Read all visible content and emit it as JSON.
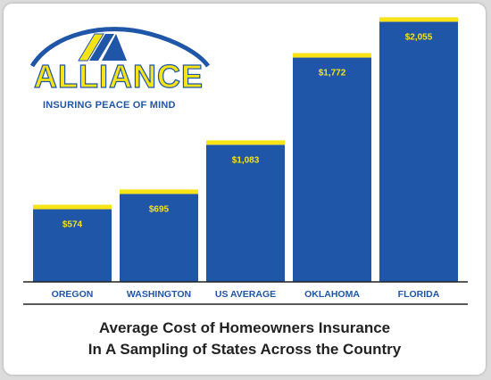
{
  "logo": {
    "name": "ALLIANCE",
    "tagline": "INSURING PEACE OF MIND"
  },
  "colors": {
    "bar": "#1f56a8",
    "bar_cap": "#f7e316",
    "value_label": "#f7e316",
    "category_label": "#1f56a8",
    "axis": "#222222"
  },
  "chart_data": {
    "type": "bar",
    "title": "Average Cost of Homeowners Insurance",
    "subtitle": "In A Sampling of States Across the Country",
    "categories": [
      "OREGON",
      "WASHINGTON",
      "US AVERAGE",
      "OKLAHOMA",
      "FLORIDA"
    ],
    "values": [
      574,
      695,
      1083,
      1772,
      2055
    ],
    "value_labels": [
      "$574",
      "$695",
      "$1,083",
      "$1,772",
      "$2,055"
    ],
    "xlabel": "",
    "ylabel": "",
    "ylim": [
      0,
      2100
    ],
    "grid": false,
    "legend": "none"
  }
}
